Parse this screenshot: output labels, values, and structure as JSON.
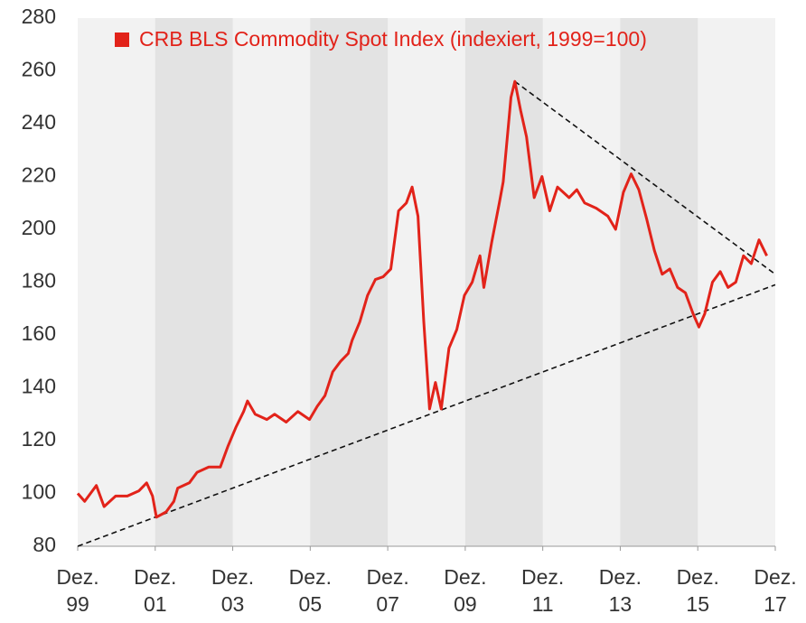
{
  "chart_data": {
    "type": "line",
    "legend": "top",
    "series": [
      {
        "name": "CRB BLS Commodity Spot Index (indexiert, 1999=100)",
        "color": "#e2231a",
        "x": [
          1999.92,
          2000.1,
          2000.4,
          2000.6,
          2000.9,
          2001.2,
          2001.5,
          2001.7,
          2001.85,
          2001.95,
          2002.2,
          2002.4,
          2002.5,
          2002.8,
          2003.0,
          2003.3,
          2003.6,
          2003.8,
          2004.0,
          2004.2,
          2004.3,
          2004.5,
          2004.8,
          2005.0,
          2005.3,
          2005.6,
          2005.9,
          2006.1,
          2006.3,
          2006.5,
          2006.7,
          2006.9,
          2007.0,
          2007.2,
          2007.4,
          2007.6,
          2007.8,
          2008.0,
          2008.2,
          2008.4,
          2008.55,
          2008.7,
          2008.85,
          2009.0,
          2009.15,
          2009.3,
          2009.5,
          2009.7,
          2009.9,
          2010.1,
          2010.3,
          2010.4,
          2010.6,
          2010.8,
          2010.9,
          2011.1,
          2011.2,
          2011.35,
          2011.5,
          2011.7,
          2011.9,
          2012.1,
          2012.3,
          2012.6,
          2012.8,
          2013.0,
          2013.3,
          2013.6,
          2013.8,
          2014.0,
          2014.2,
          2014.4,
          2014.6,
          2014.8,
          2015.0,
          2015.2,
          2015.4,
          2015.6,
          2015.8,
          2015.95,
          2016.1,
          2016.3,
          2016.5,
          2016.7,
          2016.9,
          2017.1,
          2017.3,
          2017.5,
          2017.7
        ],
        "values": [
          100,
          97,
          103,
          95,
          99,
          99,
          101,
          104,
          99,
          91,
          93,
          97,
          102,
          104,
          108,
          110,
          110,
          118,
          125,
          131,
          135,
          130,
          128,
          130,
          127,
          131,
          128,
          133,
          137,
          146,
          150,
          153,
          158,
          165,
          175,
          181,
          182,
          185,
          207,
          210,
          216,
          205,
          165,
          132,
          142,
          132,
          155,
          162,
          175,
          180,
          190,
          178,
          195,
          210,
          218,
          250,
          256,
          245,
          235,
          212,
          220,
          207,
          216,
          212,
          215,
          210,
          208,
          205,
          200,
          214,
          221,
          215,
          204,
          192,
          183,
          185,
          178,
          176,
          168,
          163,
          168,
          180,
          184,
          178,
          180,
          190,
          187,
          196,
          190
        ]
      }
    ],
    "trendlines": [
      {
        "x": [
          1999.92,
          2017.92
        ],
        "y": [
          80,
          179
        ]
      },
      {
        "x": [
          2011.2,
          2017.92
        ],
        "y": [
          256,
          183
        ]
      }
    ],
    "shaded_bands": [
      [
        2001.92,
        2003.92
      ],
      [
        2005.92,
        2007.92
      ],
      [
        2009.92,
        2011.92
      ],
      [
        2013.92,
        2015.92
      ]
    ],
    "xlim": [
      1999.92,
      2017.92
    ],
    "xticks": [
      {
        "value": 1999.92,
        "label": "Dez. 99"
      },
      {
        "value": 2001.92,
        "label": "Dez. 01"
      },
      {
        "value": 2003.92,
        "label": "Dez. 03"
      },
      {
        "value": 2005.92,
        "label": "Dez. 05"
      },
      {
        "value": 2007.92,
        "label": "Dez. 07"
      },
      {
        "value": 2009.92,
        "label": "Dez. 09"
      },
      {
        "value": 2011.92,
        "label": "Dez. 11"
      },
      {
        "value": 2013.92,
        "label": "Dez. 13"
      },
      {
        "value": 2015.92,
        "label": "Dez. 15"
      },
      {
        "value": 2017.92,
        "label": "Dez. 17"
      }
    ],
    "ylim": [
      80,
      280
    ],
    "yticks": [
      80,
      100,
      120,
      140,
      160,
      180,
      200,
      220,
      240,
      260,
      280
    ]
  }
}
